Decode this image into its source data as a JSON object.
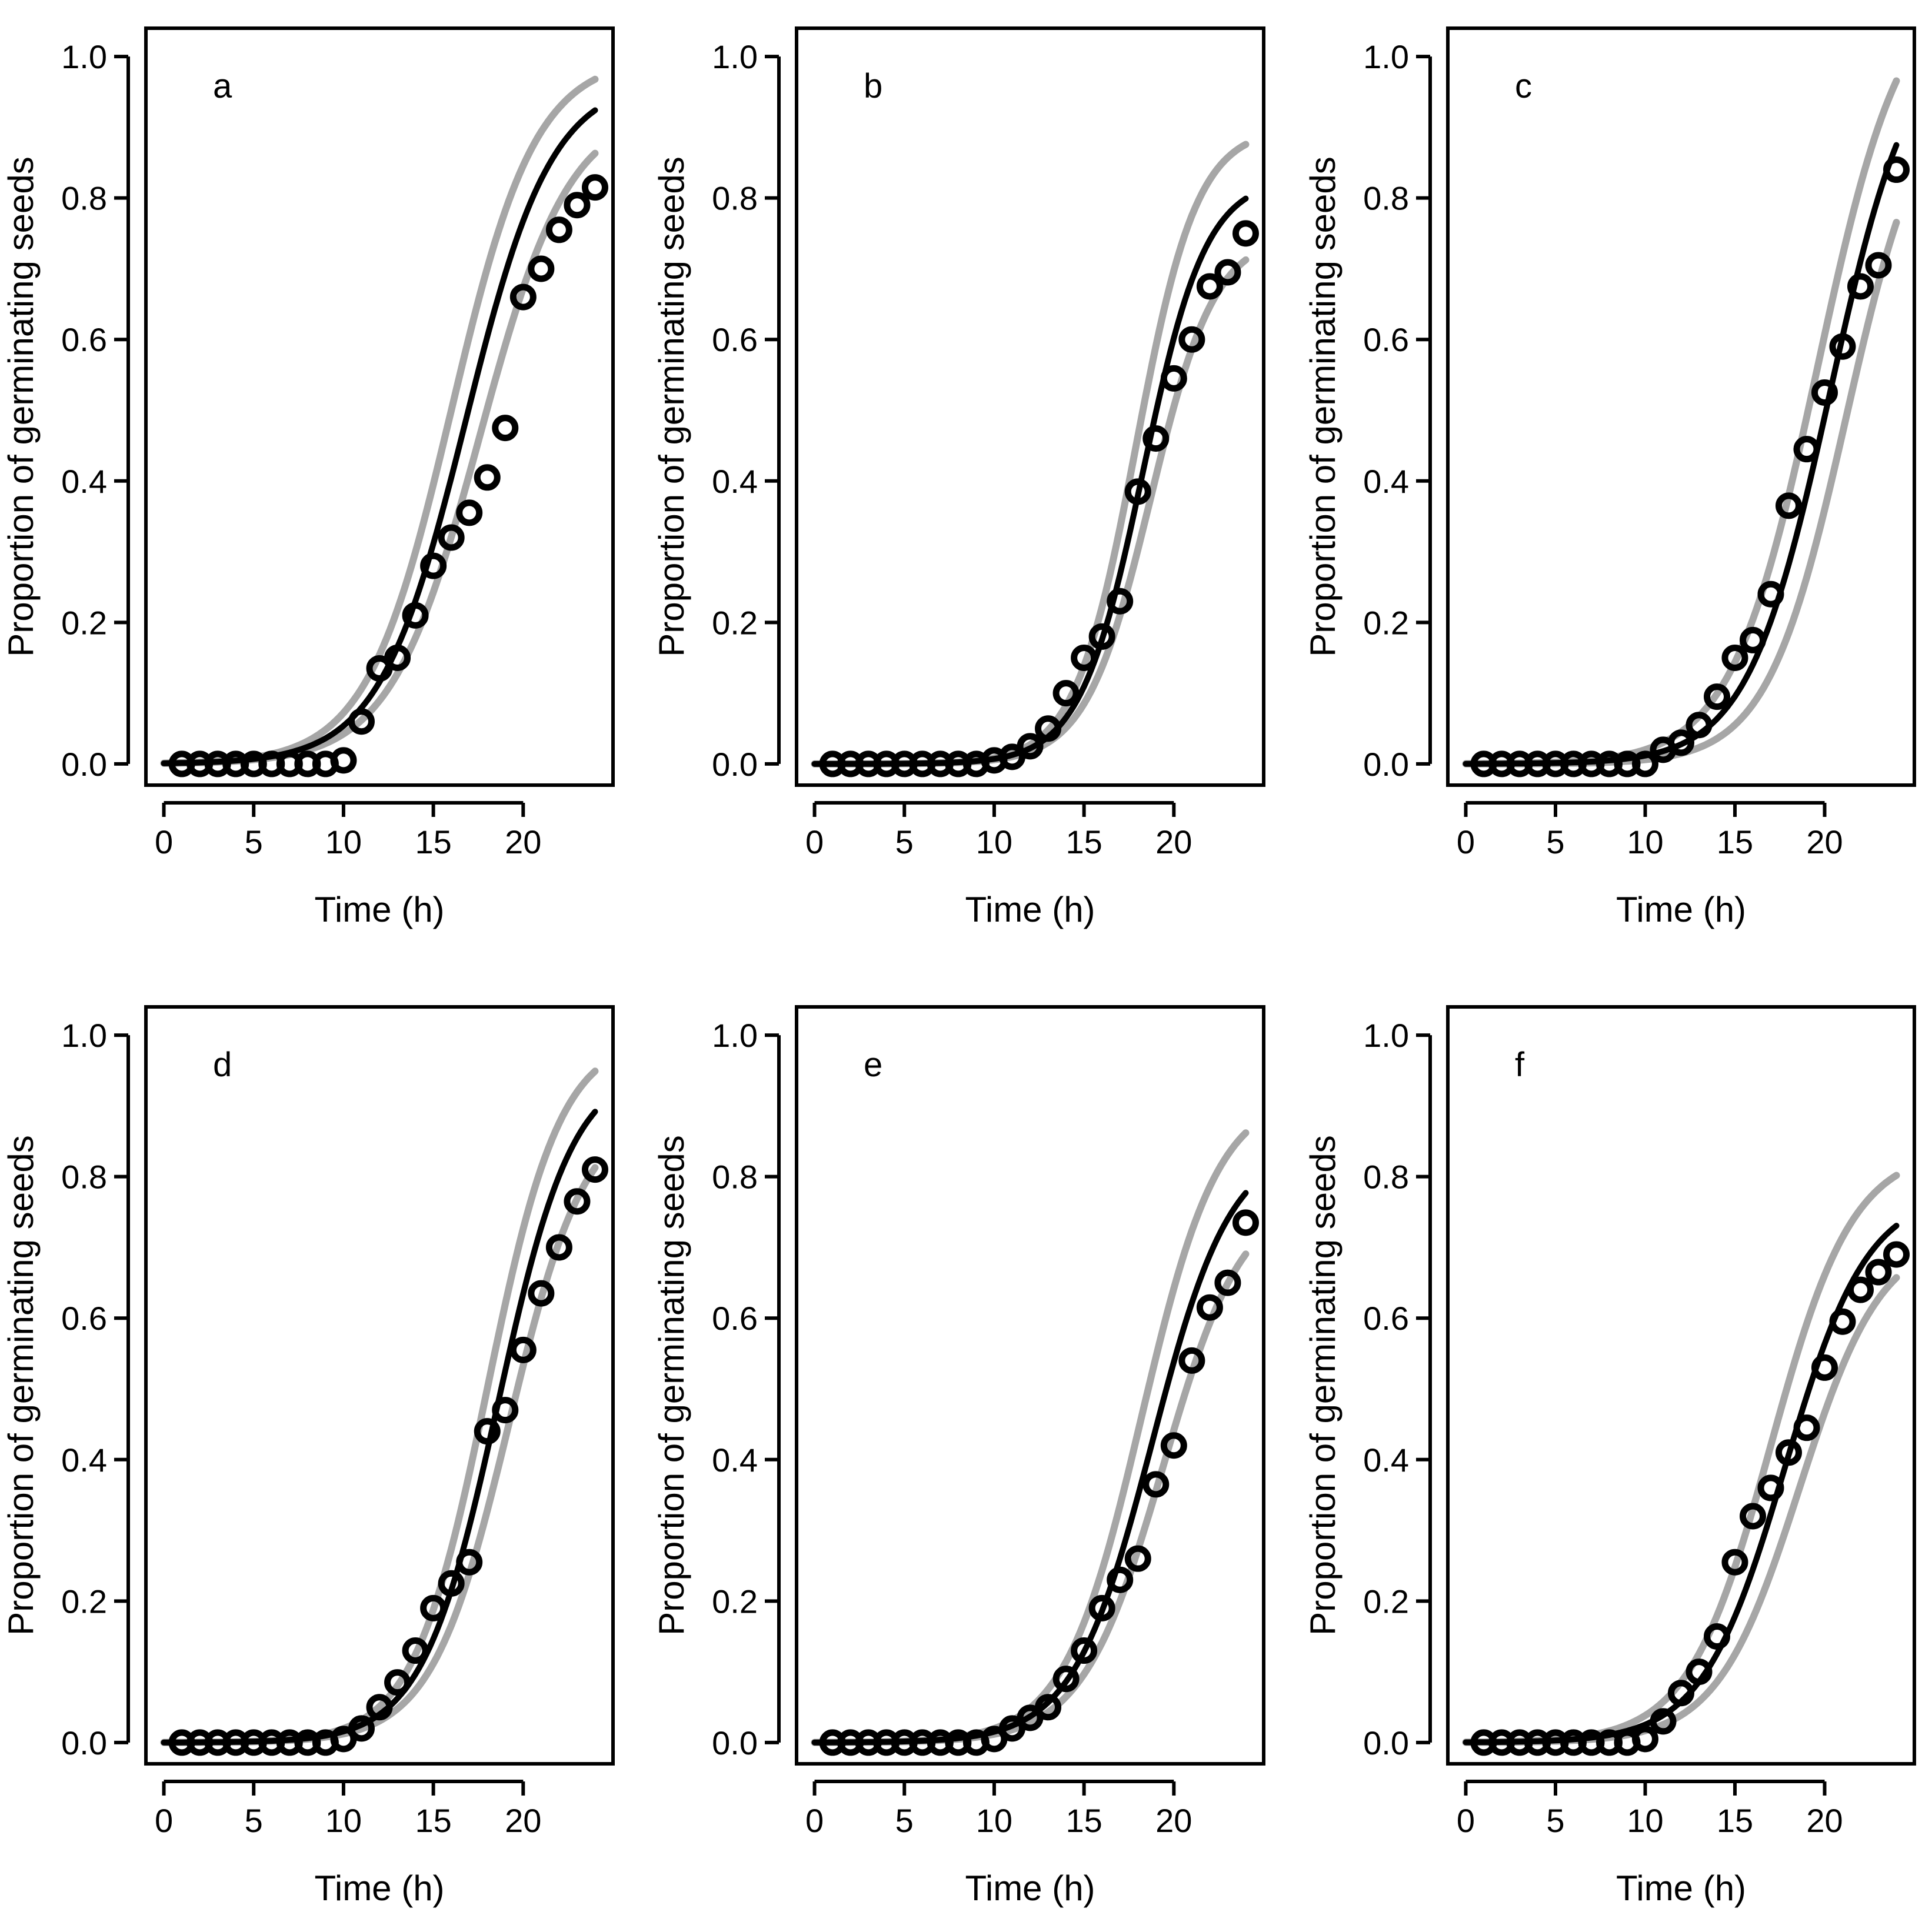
{
  "figure": {
    "background": "#ffffff"
  },
  "style": {
    "point_color": "#000000",
    "fit_color": "#000000",
    "band_color": "#a6a6a6"
  },
  "chart_data": [
    {
      "panel": "a",
      "type": "scatter",
      "xlabel": "Time (h)",
      "ylabel": "Proportion of germinating seeds",
      "xlim": [
        -1,
        25
      ],
      "ylim": [
        -0.03,
        1.04
      ],
      "xticks": [
        0,
        5,
        10,
        15,
        20
      ],
      "xtick_labels": [
        "0",
        "5",
        "10",
        "15",
        "20"
      ],
      "yticks": [
        0.0,
        0.2,
        0.4,
        0.6,
        0.8,
        1.0
      ],
      "ytick_labels": [
        "0.0",
        "0.2",
        "0.4",
        "0.6",
        "0.8",
        "1.0"
      ],
      "x": [
        1,
        2,
        3,
        4,
        5,
        6,
        7,
        8,
        9,
        10,
        11,
        12,
        13,
        14,
        15,
        16,
        17,
        18,
        19,
        20,
        21,
        22,
        23,
        24
      ],
      "y": [
        0,
        0,
        0,
        0,
        0,
        0,
        0,
        0,
        0,
        0.005,
        0.06,
        0.135,
        0.15,
        0.21,
        0.28,
        0.32,
        0.355,
        0.405,
        0.475,
        0.66,
        0.7,
        0.755,
        0.79,
        0.815
      ],
      "fit": {
        "asym": 0.97,
        "mid": 16.8,
        "scale": 2.4
      },
      "lower": {
        "asym": 0.93,
        "mid": 17.6,
        "scale": 2.5
      },
      "upper": {
        "asym": 1.0,
        "mid": 16.0,
        "scale": 2.35
      }
    },
    {
      "panel": "b",
      "type": "scatter",
      "xlabel": "Time (h)",
      "ylabel": "Proportion of germinating seeds",
      "xlim": [
        -1,
        25
      ],
      "ylim": [
        -0.03,
        1.04
      ],
      "xticks": [
        0,
        5,
        10,
        15,
        20
      ],
      "xtick_labels": [
        "0",
        "5",
        "10",
        "15",
        "20"
      ],
      "yticks": [
        0.0,
        0.2,
        0.4,
        0.6,
        0.8,
        1.0
      ],
      "ytick_labels": [
        "0.0",
        "0.2",
        "0.4",
        "0.6",
        "0.8",
        "1.0"
      ],
      "x": [
        1,
        2,
        3,
        4,
        5,
        6,
        7,
        8,
        9,
        10,
        11,
        12,
        13,
        14,
        15,
        16,
        17,
        18,
        19,
        20,
        21,
        22,
        23,
        24
      ],
      "y": [
        0,
        0,
        0,
        0,
        0,
        0,
        0,
        0,
        0,
        0.005,
        0.01,
        0.025,
        0.05,
        0.1,
        0.15,
        0.18,
        0.23,
        0.385,
        0.46,
        0.545,
        0.6,
        0.675,
        0.695,
        0.75
      ],
      "fit": {
        "asym": 0.83,
        "mid": 18.3,
        "scale": 1.75
      },
      "lower": {
        "asym": 0.75,
        "mid": 18.7,
        "scale": 1.8
      },
      "upper": {
        "asym": 0.9,
        "mid": 17.9,
        "scale": 1.7
      }
    },
    {
      "panel": "c",
      "type": "scatter",
      "xlabel": "Time (h)",
      "ylabel": "Proportion of germinating seeds",
      "xlim": [
        -1,
        25
      ],
      "ylim": [
        -0.03,
        1.04
      ],
      "xticks": [
        0,
        5,
        10,
        15,
        20
      ],
      "xtick_labels": [
        "0",
        "5",
        "10",
        "15",
        "20"
      ],
      "yticks": [
        0.0,
        0.2,
        0.4,
        0.6,
        0.8,
        1.0
      ],
      "ytick_labels": [
        "0.0",
        "0.2",
        "0.4",
        "0.6",
        "0.8",
        "1.0"
      ],
      "x": [
        1,
        2,
        3,
        4,
        5,
        6,
        7,
        8,
        9,
        10,
        11,
        12,
        13,
        14,
        15,
        16,
        17,
        18,
        19,
        20,
        21,
        22,
        23,
        24
      ],
      "y": [
        0,
        0,
        0,
        0,
        0,
        0,
        0,
        0,
        0,
        0,
        0.02,
        0.03,
        0.055,
        0.095,
        0.15,
        0.175,
        0.24,
        0.365,
        0.445,
        0.525,
        0.59,
        0.675,
        0.705,
        0.84
      ],
      "fit": {
        "asym": 1.05,
        "mid": 20.3,
        "scale": 2.3
      },
      "lower": {
        "asym": 0.98,
        "mid": 21.2,
        "scale": 2.2
      },
      "upper": {
        "asym": 1.12,
        "mid": 19.6,
        "scale": 2.4
      }
    },
    {
      "panel": "d",
      "type": "scatter",
      "xlabel": "Time (h)",
      "ylabel": "Proportion of germinating seeds",
      "xlim": [
        -1,
        25
      ],
      "ylim": [
        -0.03,
        1.04
      ],
      "xticks": [
        0,
        5,
        10,
        15,
        20
      ],
      "xtick_labels": [
        "0",
        "5",
        "10",
        "15",
        "20"
      ],
      "yticks": [
        0.0,
        0.2,
        0.4,
        0.6,
        0.8,
        1.0
      ],
      "ytick_labels": [
        "0.0",
        "0.2",
        "0.4",
        "0.6",
        "0.8",
        "1.0"
      ],
      "x": [
        1,
        2,
        3,
        4,
        5,
        6,
        7,
        8,
        9,
        10,
        11,
        12,
        13,
        14,
        15,
        16,
        17,
        18,
        19,
        20,
        21,
        22,
        23,
        24
      ],
      "y": [
        0,
        0,
        0,
        0,
        0,
        0,
        0,
        0,
        0,
        0.005,
        0.02,
        0.05,
        0.085,
        0.13,
        0.19,
        0.225,
        0.255,
        0.44,
        0.47,
        0.555,
        0.635,
        0.7,
        0.765,
        0.81
      ],
      "fit": {
        "asym": 0.96,
        "mid": 18.6,
        "scale": 2.1
      },
      "lower": {
        "asym": 0.9,
        "mid": 19.2,
        "scale": 2.15
      },
      "upper": {
        "asym": 1.0,
        "mid": 18.0,
        "scale": 2.05
      }
    },
    {
      "panel": "e",
      "type": "scatter",
      "xlabel": "Time (h)",
      "ylabel": "Proportion of germinating seeds",
      "xlim": [
        -1,
        25
      ],
      "ylim": [
        -0.03,
        1.04
      ],
      "xticks": [
        0,
        5,
        10,
        15,
        20
      ],
      "xtick_labels": [
        "0",
        "5",
        "10",
        "15",
        "20"
      ],
      "yticks": [
        0.0,
        0.2,
        0.4,
        0.6,
        0.8,
        1.0
      ],
      "ytick_labels": [
        "0.0",
        "0.2",
        "0.4",
        "0.6",
        "0.8",
        "1.0"
      ],
      "x": [
        1,
        2,
        3,
        4,
        5,
        6,
        7,
        8,
        9,
        10,
        11,
        12,
        13,
        14,
        15,
        16,
        17,
        18,
        19,
        20,
        21,
        22,
        23,
        24
      ],
      "y": [
        0,
        0,
        0,
        0,
        0,
        0,
        0,
        0,
        0,
        0.005,
        0.02,
        0.035,
        0.05,
        0.09,
        0.13,
        0.19,
        0.23,
        0.26,
        0.365,
        0.42,
        0.54,
        0.615,
        0.65,
        0.735
      ],
      "fit": {
        "asym": 0.85,
        "mid": 18.8,
        "scale": 2.2
      },
      "lower": {
        "asym": 0.78,
        "mid": 19.4,
        "scale": 2.25
      },
      "upper": {
        "asym": 0.92,
        "mid": 18.2,
        "scale": 2.15
      }
    },
    {
      "panel": "f",
      "type": "scatter",
      "xlabel": "Time (h)",
      "ylabel": "Proportion of germinating seeds",
      "xlim": [
        -1,
        25
      ],
      "ylim": [
        -0.03,
        1.04
      ],
      "xticks": [
        0,
        5,
        10,
        15,
        20
      ],
      "xtick_labels": [
        "0",
        "5",
        "10",
        "15",
        "20"
      ],
      "yticks": [
        0.0,
        0.2,
        0.4,
        0.6,
        0.8,
        1.0
      ],
      "ytick_labels": [
        "0.0",
        "0.2",
        "0.4",
        "0.6",
        "0.8",
        "1.0"
      ],
      "x": [
        1,
        2,
        3,
        4,
        5,
        6,
        7,
        8,
        9,
        10,
        11,
        12,
        13,
        14,
        15,
        16,
        17,
        18,
        19,
        20,
        21,
        22,
        23,
        24
      ],
      "y": [
        0,
        0,
        0,
        0,
        0,
        0,
        0,
        0,
        0,
        0.005,
        0.03,
        0.07,
        0.1,
        0.15,
        0.255,
        0.32,
        0.36,
        0.41,
        0.445,
        0.53,
        0.595,
        0.64,
        0.665,
        0.69
      ],
      "fit": {
        "asym": 0.78,
        "mid": 17.8,
        "scale": 2.3
      },
      "lower": {
        "asym": 0.72,
        "mid": 18.6,
        "scale": 2.3
      },
      "upper": {
        "asym": 0.84,
        "mid": 17.0,
        "scale": 2.3
      }
    }
  ]
}
